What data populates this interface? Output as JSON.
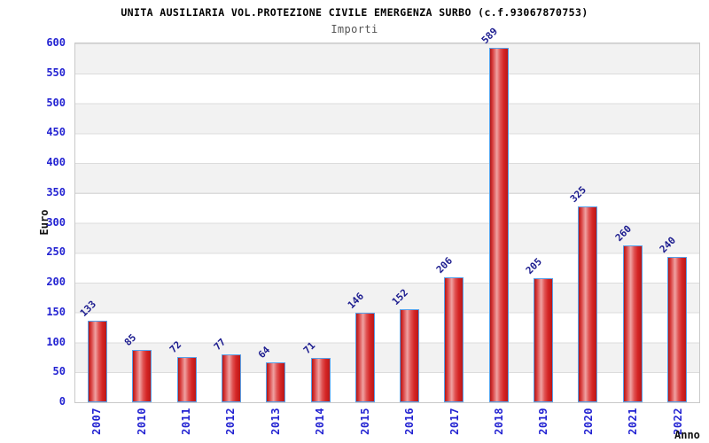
{
  "chart_data": {
    "type": "bar",
    "title": "UNITA AUSILIARIA VOL.PROTEZIONE CIVILE EMERGENZA SURBO (c.f.93067870753)",
    "subtitle": "Importi",
    "xlabel": "Anno",
    "ylabel": "Euro",
    "categories": [
      "2007",
      "2010",
      "2011",
      "2012",
      "2013",
      "2014",
      "2015",
      "2016",
      "2017",
      "2018",
      "2019",
      "2020",
      "2021",
      "2022"
    ],
    "values": [
      133,
      85,
      72,
      77,
      64,
      71,
      146,
      152,
      206,
      589,
      205,
      325,
      260,
      240
    ],
    "ylim": [
      0,
      600
    ],
    "ytick_step": 50,
    "grid": "horizontal gridlines every 50 with alternating gray/white bands",
    "legend_position": "none",
    "colors": {
      "bar_fill_dark": "#c01818",
      "bar_fill_highlight": "#efa2a2",
      "bar_border": "#58a0e8",
      "axis_tick_label": "#2323d2",
      "value_label": "#1c1c8f",
      "band_gray": "#f2f2f2",
      "band_white": "#ffffff",
      "gridline": "#dcdcdc",
      "plot_border": "#c9c9c9",
      "title_color": "#000000",
      "subtitle_color": "#555555",
      "axis_name_color": "#111111"
    }
  }
}
